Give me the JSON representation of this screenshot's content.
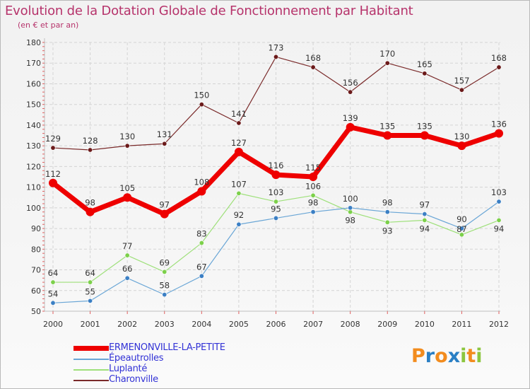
{
  "title": "Evolution de la Dotation Globale de Fonctionnement par Habitant",
  "subtitle": "(en € et par an)",
  "logo": {
    "letters": [
      "P",
      "r",
      "o",
      "x",
      "i",
      "t",
      "i"
    ],
    "colors": [
      "#f28c1e",
      "#2a7fc4",
      "#f28c1e",
      "#2a7fc4",
      "#8cc63f",
      "#f28c1e",
      "#8cc63f"
    ]
  },
  "chart_data": {
    "type": "line",
    "title": "Evolution de la Dotation Globale de Fonctionnement par Habitant",
    "ylabel": "(en € et par an)",
    "xlabel": "",
    "ylim": [
      50,
      180
    ],
    "yticks": [
      50,
      60,
      70,
      80,
      90,
      100,
      110,
      120,
      130,
      140,
      150,
      160,
      170,
      180
    ],
    "categories": [
      "2000",
      "2001",
      "2002",
      "2003",
      "2004",
      "2005",
      "2006",
      "2007",
      "2008",
      "2009",
      "2010",
      "2011",
      "2012"
    ],
    "grid": true,
    "series": [
      {
        "name": "Charonville",
        "color": "#7a2a2a",
        "point_color": "#6b1a1a",
        "width": 1.2,
        "marker": 3.2,
        "labels": "above",
        "values": [
          129,
          128,
          130,
          131,
          150,
          141,
          173,
          168,
          156,
          170,
          165,
          157,
          168
        ]
      },
      {
        "name": "Luplanté",
        "color": "#9ee07a",
        "point_color": "#7cd04a",
        "width": 1.2,
        "marker": 3.2,
        "labels": "luplante",
        "values": [
          64,
          64,
          77,
          69,
          83,
          107,
          103,
          106,
          98,
          93,
          94,
          87,
          94
        ]
      },
      {
        "name": "Épeautrolles",
        "color": "#6aa6d6",
        "point_color": "#3b7fc4",
        "width": 1.2,
        "marker": 3.2,
        "labels": "epeau",
        "values": [
          54,
          55,
          66,
          58,
          67,
          92,
          95,
          98,
          100,
          98,
          97,
          90,
          103
        ]
      },
      {
        "name": "ERMENONVILLE-LA-PETITE",
        "color": "#ee0000",
        "point_color": "#ee0000",
        "width": 7,
        "marker": 6,
        "labels": "above",
        "values": [
          112,
          98,
          105,
          97,
          108,
          127,
          116,
          115,
          139,
          135,
          135,
          130,
          136
        ]
      }
    ]
  },
  "legend": [
    "ERMENONVILLE-LA-PETITE",
    "Épeautrolles",
    "Luplanté",
    "Charonville"
  ]
}
